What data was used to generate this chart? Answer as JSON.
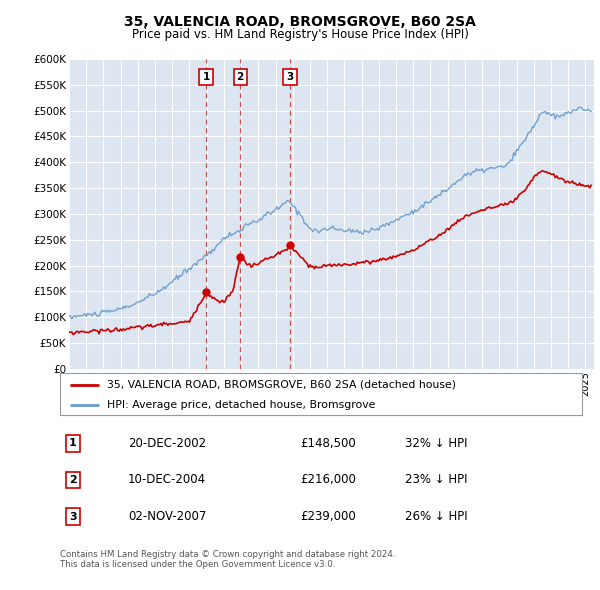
{
  "title": "35, VALENCIA ROAD, BROMSGROVE, B60 2SA",
  "subtitle": "Price paid vs. HM Land Registry's House Price Index (HPI)",
  "ylabel_ticks": [
    "£0",
    "£50K",
    "£100K",
    "£150K",
    "£200K",
    "£250K",
    "£300K",
    "£350K",
    "£400K",
    "£450K",
    "£500K",
    "£550K",
    "£600K"
  ],
  "ytick_values": [
    0,
    50000,
    100000,
    150000,
    200000,
    250000,
    300000,
    350000,
    400000,
    450000,
    500000,
    550000,
    600000
  ],
  "background_color": "#dde6f0",
  "legend_items": [
    {
      "label": "35, VALENCIA ROAD, BROMSGROVE, B60 2SA (detached house)",
      "color": "#cc0000"
    },
    {
      "label": "HPI: Average price, detached house, Bromsgrove",
      "color": "#6699cc"
    }
  ],
  "sales": [
    {
      "date_num": 2002.96,
      "price": 148500,
      "label": "1"
    },
    {
      "date_num": 2004.94,
      "price": 216000,
      "label": "2"
    },
    {
      "date_num": 2007.84,
      "price": 239000,
      "label": "3"
    }
  ],
  "vline_dates": [
    2002.96,
    2004.94,
    2007.84
  ],
  "table_rows": [
    {
      "num": "1",
      "date": "20-DEC-2002",
      "price": "£148,500",
      "pct": "32% ↓ HPI"
    },
    {
      "num": "2",
      "date": "10-DEC-2004",
      "price": "£216,000",
      "pct": "23% ↓ HPI"
    },
    {
      "num": "3",
      "date": "02-NOV-2007",
      "price": "£239,000",
      "pct": "26% ↓ HPI"
    }
  ],
  "footnote": "Contains HM Land Registry data © Crown copyright and database right 2024.\nThis data is licensed under the Open Government Licence v3.0.",
  "xmin": 1995.0,
  "xmax": 2025.5,
  "ymin": 0,
  "ymax": 600000,
  "hpi_anchors": [
    [
      1995.0,
      100000
    ],
    [
      1996.0,
      104000
    ],
    [
      1997.0,
      108000
    ],
    [
      1998.0,
      116000
    ],
    [
      1999.0,
      128000
    ],
    [
      2000.0,
      145000
    ],
    [
      2001.0,
      168000
    ],
    [
      2002.0,
      195000
    ],
    [
      2003.0,
      220000
    ],
    [
      2004.0,
      252000
    ],
    [
      2005.0,
      270000
    ],
    [
      2006.0,
      288000
    ],
    [
      2007.0,
      308000
    ],
    [
      2007.8,
      325000
    ],
    [
      2008.5,
      295000
    ],
    [
      2009.0,
      272000
    ],
    [
      2009.5,
      265000
    ],
    [
      2010.0,
      272000
    ],
    [
      2011.0,
      268000
    ],
    [
      2012.0,
      265000
    ],
    [
      2013.0,
      272000
    ],
    [
      2014.0,
      288000
    ],
    [
      2015.0,
      305000
    ],
    [
      2016.0,
      325000
    ],
    [
      2017.0,
      348000
    ],
    [
      2018.0,
      375000
    ],
    [
      2019.0,
      385000
    ],
    [
      2020.0,
      390000
    ],
    [
      2020.5,
      395000
    ],
    [
      2021.0,
      420000
    ],
    [
      2021.5,
      445000
    ],
    [
      2022.0,
      470000
    ],
    [
      2022.5,
      500000
    ],
    [
      2023.0,
      490000
    ],
    [
      2023.5,
      488000
    ],
    [
      2024.0,
      495000
    ],
    [
      2024.5,
      505000
    ],
    [
      2025.0,
      500000
    ],
    [
      2025.4,
      502000
    ]
  ],
  "price_anchors": [
    [
      1995.0,
      70000
    ],
    [
      1996.0,
      72000
    ],
    [
      1997.0,
      74000
    ],
    [
      1998.0,
      76000
    ],
    [
      1999.0,
      80000
    ],
    [
      2000.0,
      84000
    ],
    [
      2001.0,
      88000
    ],
    [
      2002.0,
      91000
    ],
    [
      2002.96,
      148500
    ],
    [
      2003.3,
      138000
    ],
    [
      2003.8,
      130000
    ],
    [
      2004.0,
      132000
    ],
    [
      2004.5,
      148000
    ],
    [
      2004.94,
      216000
    ],
    [
      2005.2,
      208000
    ],
    [
      2005.6,
      198000
    ],
    [
      2006.0,
      205000
    ],
    [
      2006.5,
      212000
    ],
    [
      2007.0,
      220000
    ],
    [
      2007.5,
      228000
    ],
    [
      2007.84,
      239000
    ],
    [
      2008.0,
      232000
    ],
    [
      2008.5,
      215000
    ],
    [
      2009.0,
      198000
    ],
    [
      2009.5,
      195000
    ],
    [
      2010.0,
      200000
    ],
    [
      2011.0,
      202000
    ],
    [
      2012.0,
      205000
    ],
    [
      2013.0,
      210000
    ],
    [
      2014.0,
      218000
    ],
    [
      2015.0,
      230000
    ],
    [
      2016.0,
      248000
    ],
    [
      2017.0,
      270000
    ],
    [
      2018.0,
      295000
    ],
    [
      2019.0,
      308000
    ],
    [
      2020.0,
      315000
    ],
    [
      2020.5,
      318000
    ],
    [
      2021.0,
      330000
    ],
    [
      2021.5,
      345000
    ],
    [
      2022.0,
      370000
    ],
    [
      2022.5,
      385000
    ],
    [
      2023.0,
      378000
    ],
    [
      2023.5,
      368000
    ],
    [
      2024.0,
      362000
    ],
    [
      2024.5,
      358000
    ],
    [
      2025.0,
      355000
    ],
    [
      2025.3,
      353000
    ]
  ]
}
